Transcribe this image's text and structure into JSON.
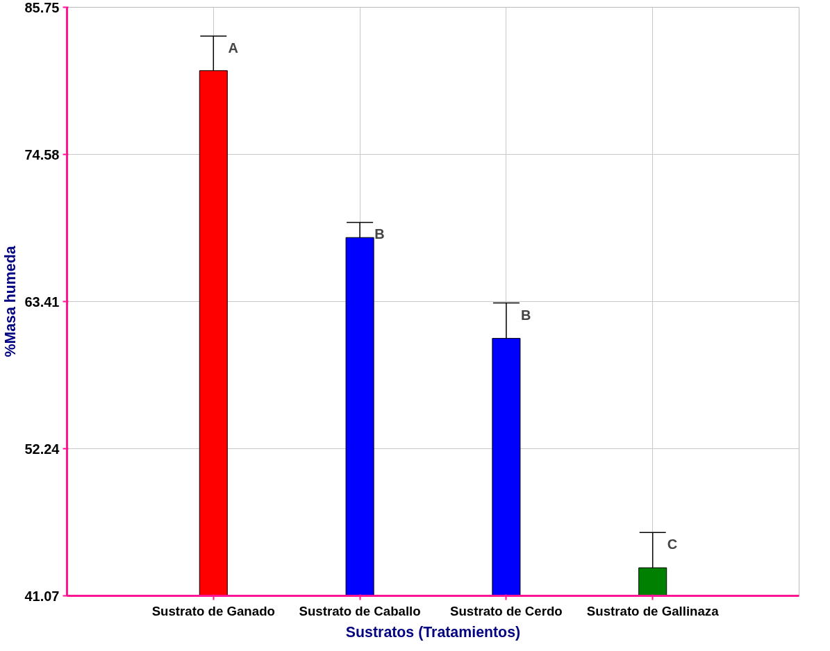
{
  "chart_data": {
    "type": "bar",
    "xlabel": "Sustratos (Tratamientos)",
    "ylabel": "%Masa humeda",
    "categories": [
      "Sustrato de Ganado",
      "Sustrato de Caballo",
      "Sustrato de Cerdo",
      "Sustrato de Gallinaza"
    ],
    "values": [
      80.94,
      68.27,
      60.62,
      43.2
    ],
    "colors": [
      "#ff0000",
      "#0000ff",
      "#0000ff",
      "#008000"
    ],
    "errors": [
      2.63,
      1.15,
      2.68,
      2.68
    ],
    "ylim": [
      41.07,
      85.75
    ],
    "yticks": [
      41.07,
      52.24,
      63.41,
      74.58,
      85.75
    ],
    "grid": true,
    "annotations": [
      {
        "text": "A",
        "x": "Sustrato de Ganado",
        "y": 83.57
      },
      {
        "text": "B",
        "x": "Sustrato de Caballo",
        "y": 69.42
      },
      {
        "text": "B",
        "x": "Sustrato de Cerdo",
        "y": 63.3
      },
      {
        "text": "C",
        "x": "Sustrato de Gallinaza",
        "y": 45.88
      }
    ]
  }
}
